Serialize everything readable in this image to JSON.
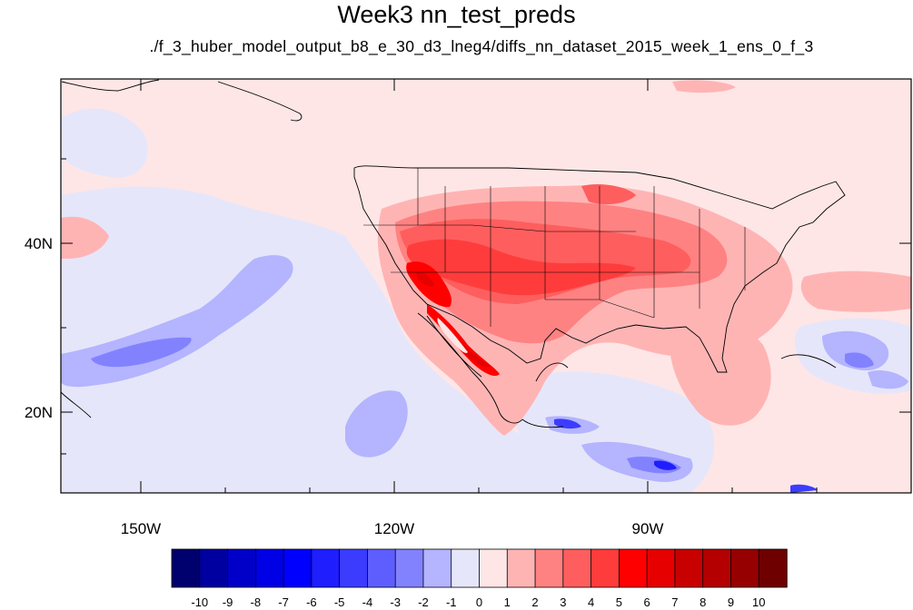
{
  "title": "Week3 nn_test_preds",
  "subtitle": "./f_3_huber_model_output_b8_e_30_d3_lneg4/diffs_nn_dataset_2015_week_1_ens_0_f_3",
  "axes": {
    "lat_labels": [
      "40N",
      "20N"
    ],
    "lon_labels": [
      "150W",
      "120W",
      "90W"
    ]
  },
  "colorbar": {
    "colors": [
      "#00006e",
      "#0000a0",
      "#0000c8",
      "#0000e6",
      "#0000ff",
      "#1e1eff",
      "#3c3cff",
      "#5e5eff",
      "#8282ff",
      "#b4b4ff",
      "#e6e6fa",
      "#ffe6e6",
      "#ffb4b4",
      "#ff8282",
      "#ff5e5e",
      "#ff3c3c",
      "#ff0000",
      "#e60000",
      "#c80000",
      "#b40000",
      "#960000",
      "#6e0000"
    ],
    "tick_labels": [
      "-10",
      "-9",
      "-8",
      "-7",
      "-6",
      "-5",
      "-4",
      "-3",
      "-2",
      "-1",
      "0",
      "1",
      "2",
      "3",
      "4",
      "5",
      "6",
      "7",
      "8",
      "9",
      "10"
    ]
  }
}
